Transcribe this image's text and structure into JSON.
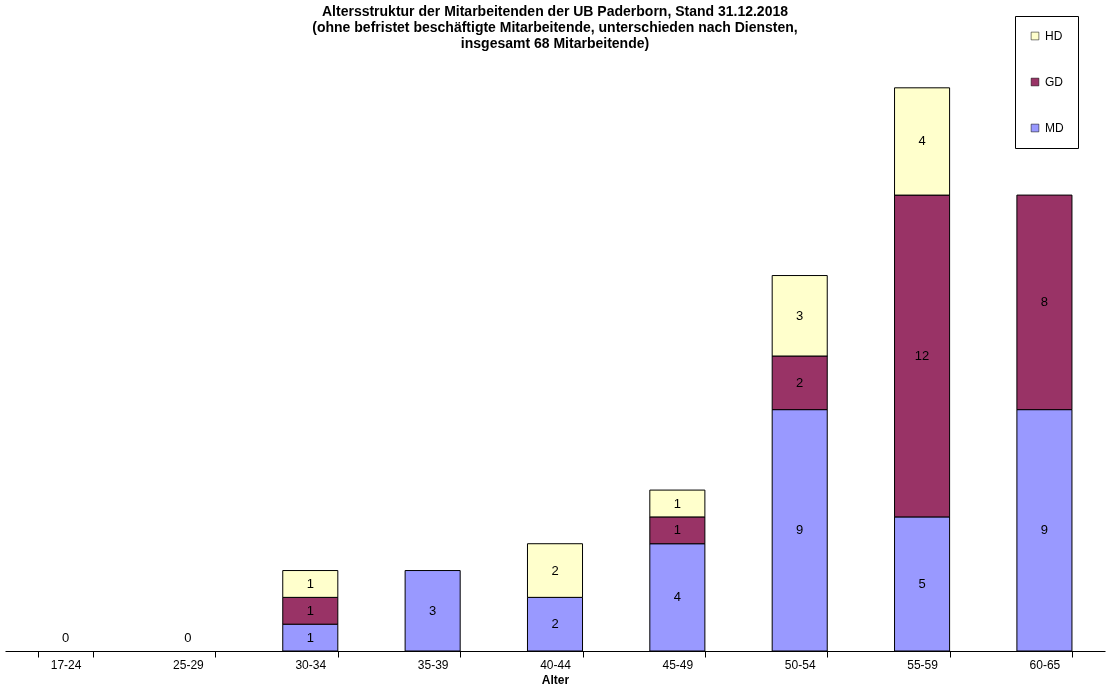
{
  "chart_data": {
    "type": "bar",
    "stacked": true,
    "title": "Altersstruktur der Mitarbeitenden der UB Paderborn, Stand 31.12.2018\n(ohne befristet beschäftigte Mitarbeitende, unterschieden nach Diensten,\ninsgesamt 68 Mitarbeitende)",
    "xlabel": "Alter",
    "categories": [
      "17-24",
      "25-29",
      "30-34",
      "35-39",
      "40-44",
      "45-49",
      "50-54",
      "55-59",
      "60-65"
    ],
    "series": [
      {
        "name": "MD",
        "color": "#9999ff",
        "values": [
          0,
          0,
          1,
          3,
          2,
          4,
          9,
          5,
          9
        ],
        "value_labels": [
          "0",
          "0",
          "1",
          "3",
          "2",
          "4",
          "9",
          "5",
          "9"
        ]
      },
      {
        "name": "GD",
        "color": "#993366",
        "values": [
          0,
          0,
          1,
          0,
          0,
          1,
          2,
          12,
          8
        ],
        "value_labels": [
          null,
          null,
          "1",
          null,
          null,
          "1",
          "2",
          "12",
          "8"
        ]
      },
      {
        "name": "HD",
        "color": "#ffffcc",
        "values": [
          0,
          0,
          1,
          0,
          2,
          1,
          3,
          4,
          0
        ],
        "value_labels": [
          null,
          null,
          "1",
          null,
          "2",
          "1",
          "3",
          "4",
          null
        ]
      }
    ],
    "legend": "top right",
    "grid": false
  }
}
